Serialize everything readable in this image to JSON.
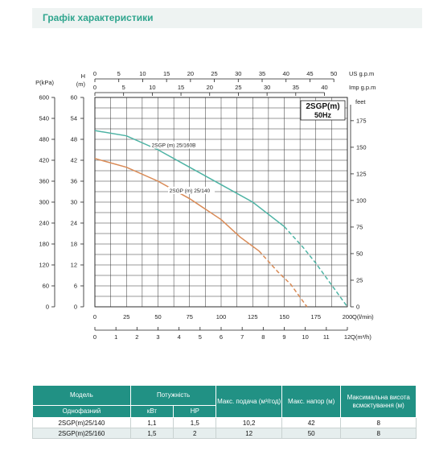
{
  "header": {
    "title": "Графік характеристики"
  },
  "chart_data": {
    "type": "line",
    "model_label": [
      "2SGP(m)",
      "50Hz"
    ],
    "x": {
      "label": "Q(l/min)",
      "range": [
        0,
        200
      ],
      "ticks": [
        "0",
        "25",
        "50",
        "75",
        "100",
        "125",
        "150",
        "175",
        "200"
      ]
    },
    "x_secondary": {
      "label": "Q(m³/h)",
      "ticks": [
        "0",
        "1",
        "2",
        "3",
        "4",
        "5",
        "6",
        "7",
        "8",
        "9",
        "10",
        "11",
        "12"
      ]
    },
    "x_top_us": {
      "label": "US  g.p.m",
      "ticks": [
        "0",
        "5",
        "10",
        "15",
        "20",
        "25",
        "30",
        "35",
        "40",
        "45",
        "50"
      ]
    },
    "x_top_imp": {
      "label": "Imp  g.p.m",
      "ticks": [
        "0",
        "5",
        "10",
        "15",
        "20",
        "25",
        "30",
        "35",
        "40"
      ]
    },
    "y": {
      "label": "H",
      "unit": "(m)",
      "range": [
        0,
        60
      ],
      "ticks": [
        "0",
        "6",
        "12",
        "18",
        "24",
        "30",
        "36",
        "42",
        "48",
        "54",
        "60"
      ]
    },
    "y_pressure": {
      "label": "P(kPa)",
      "ticks": [
        "0",
        "60",
        "120",
        "180",
        "240",
        "300",
        "360",
        "420",
        "480",
        "540",
        "600"
      ]
    },
    "y_feet": {
      "label": "feet",
      "ticks": [
        "0",
        "25",
        "50",
        "75",
        "100",
        "125",
        "150",
        "175"
      ]
    },
    "series": [
      {
        "name": "2SGP (m) 25/160B",
        "color": "#4db3a4",
        "points": [
          [
            0,
            50.5
          ],
          [
            25,
            49
          ],
          [
            50,
            45
          ],
          [
            75,
            40
          ],
          [
            100,
            35
          ],
          [
            125,
            30
          ],
          [
            150,
            23
          ]
        ],
        "dashed_points": [
          [
            150,
            23
          ],
          [
            165,
            17
          ],
          [
            175,
            12.5
          ],
          [
            190,
            5
          ],
          [
            200,
            0
          ]
        ]
      },
      {
        "name": "2SGP (m) 25/140",
        "color": "#d98a55",
        "points": [
          [
            0,
            42.5
          ],
          [
            25,
            40
          ],
          [
            50,
            36
          ],
          [
            75,
            31
          ],
          [
            100,
            25
          ],
          [
            115,
            20
          ],
          [
            130,
            16
          ]
        ],
        "dashed_points": [
          [
            130,
            16
          ],
          [
            145,
            10
          ],
          [
            155,
            6.5
          ],
          [
            168,
            0
          ]
        ]
      }
    ]
  },
  "table": {
    "headers": {
      "model": "Модель",
      "power": "Потужність",
      "flow": "Макс. подача (м³/год)",
      "head": "Макс. напор (м)",
      "suction": "Максимальна висота всмоктування (м)",
      "phase": "Однофазний",
      "kw": "кВт",
      "hp": "HP"
    },
    "rows": [
      {
        "model": "2SGP(m)25/140",
        "kw": "1,1",
        "hp": "1,5",
        "flow": "10,2",
        "head": "42",
        "suction": "8"
      },
      {
        "model": "2SGP(m)25/160",
        "kw": "1,5",
        "hp": "2",
        "flow": "12",
        "head": "50",
        "suction": "8"
      }
    ]
  }
}
